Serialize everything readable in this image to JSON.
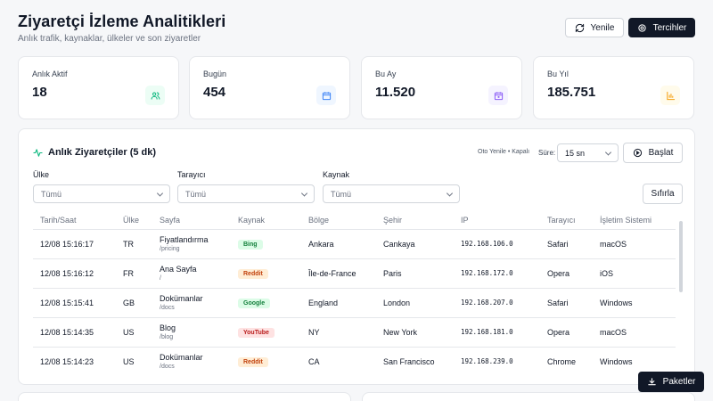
{
  "header": {
    "title": "Ziyaretçi İzleme Analitikleri",
    "subtitle": "Anlık trafik, kaynaklar, ülkeler ve son ziyaretler",
    "refresh_label": "Yenile",
    "prefs_label": "Tercihler"
  },
  "stats": [
    {
      "label": "Anlık Aktif",
      "value": "18",
      "icon": "users-icon",
      "icon_color": "#10b981",
      "icon_bg": "#ecfdf5"
    },
    {
      "label": "Bugün",
      "value": "454",
      "icon": "calendar-icon",
      "icon_color": "#3b82f6",
      "icon_bg": "#eff6ff"
    },
    {
      "label": "Bu Ay",
      "value": "11.520",
      "icon": "calendar-icon",
      "icon_color": "#8b5cf6",
      "icon_bg": "#f5f3ff"
    },
    {
      "label": "Bu Yıl",
      "value": "185.751",
      "icon": "bar-chart-icon",
      "icon_color": "#f59e0b",
      "icon_bg": "#fffbeb"
    }
  ],
  "live": {
    "title": "Anlık Ziyaretçiler (5 dk)",
    "auto_refresh": "Oto Yenile • Kapalı",
    "interval_label": "Süre:",
    "interval_value": "15 sn",
    "start_label": "Başlat",
    "reset_label": "Sıfırla",
    "filters": [
      {
        "label": "Ülke",
        "value": "Tümü"
      },
      {
        "label": "Tarayıcı",
        "value": "Tümü"
      },
      {
        "label": "Kaynak",
        "value": "Tümü"
      }
    ],
    "columns": [
      "Tarih/Saat",
      "Ülke",
      "Sayfa",
      "Kaynak",
      "Bölge",
      "Şehir",
      "IP",
      "Tarayıcı",
      "İşletim Sistemi"
    ],
    "rows": [
      {
        "time": "12/08 15:16:17",
        "country": "TR",
        "page": "Fiyatlandırma",
        "path": "/pricing",
        "source": "Bing",
        "region": "Ankara",
        "city": "Cankaya",
        "ip": "192.168.106.0",
        "browser": "Safari",
        "os": "macOS"
      },
      {
        "time": "12/08 15:16:12",
        "country": "FR",
        "page": "Ana Sayfa",
        "path": "/",
        "source": "Reddit",
        "region": "Île-de-France",
        "city": "Paris",
        "ip": "192.168.172.0",
        "browser": "Opera",
        "os": "iOS"
      },
      {
        "time": "12/08 15:15:41",
        "country": "GB",
        "page": "Dokümanlar",
        "path": "/docs",
        "source": "Google",
        "region": "England",
        "city": "London",
        "ip": "192.168.207.0",
        "browser": "Safari",
        "os": "Windows"
      },
      {
        "time": "12/08 15:14:35",
        "country": "US",
        "page": "Blog",
        "path": "/blog",
        "source": "YouTube",
        "region": "NY",
        "city": "New York",
        "ip": "192.168.181.0",
        "browser": "Opera",
        "os": "macOS"
      },
      {
        "time": "12/08 15:14:23",
        "country": "US",
        "page": "Dokümanlar",
        "path": "/docs",
        "source": "Reddit",
        "region": "CA",
        "city": "San Francisco",
        "ip": "192.168.239.0",
        "browser": "Chrome",
        "os": "Windows"
      }
    ]
  },
  "source_colors": {
    "Bing": {
      "bg": "#dcfce7",
      "fg": "#15803d"
    },
    "Reddit": {
      "bg": "#ffedd5",
      "fg": "#c2410c"
    },
    "Google": {
      "bg": "#dcfce7",
      "fg": "#15803d"
    },
    "YouTube": {
      "bg": "#fee2e2",
      "fg": "#b91c1c"
    }
  },
  "packages_label": "Paketler"
}
